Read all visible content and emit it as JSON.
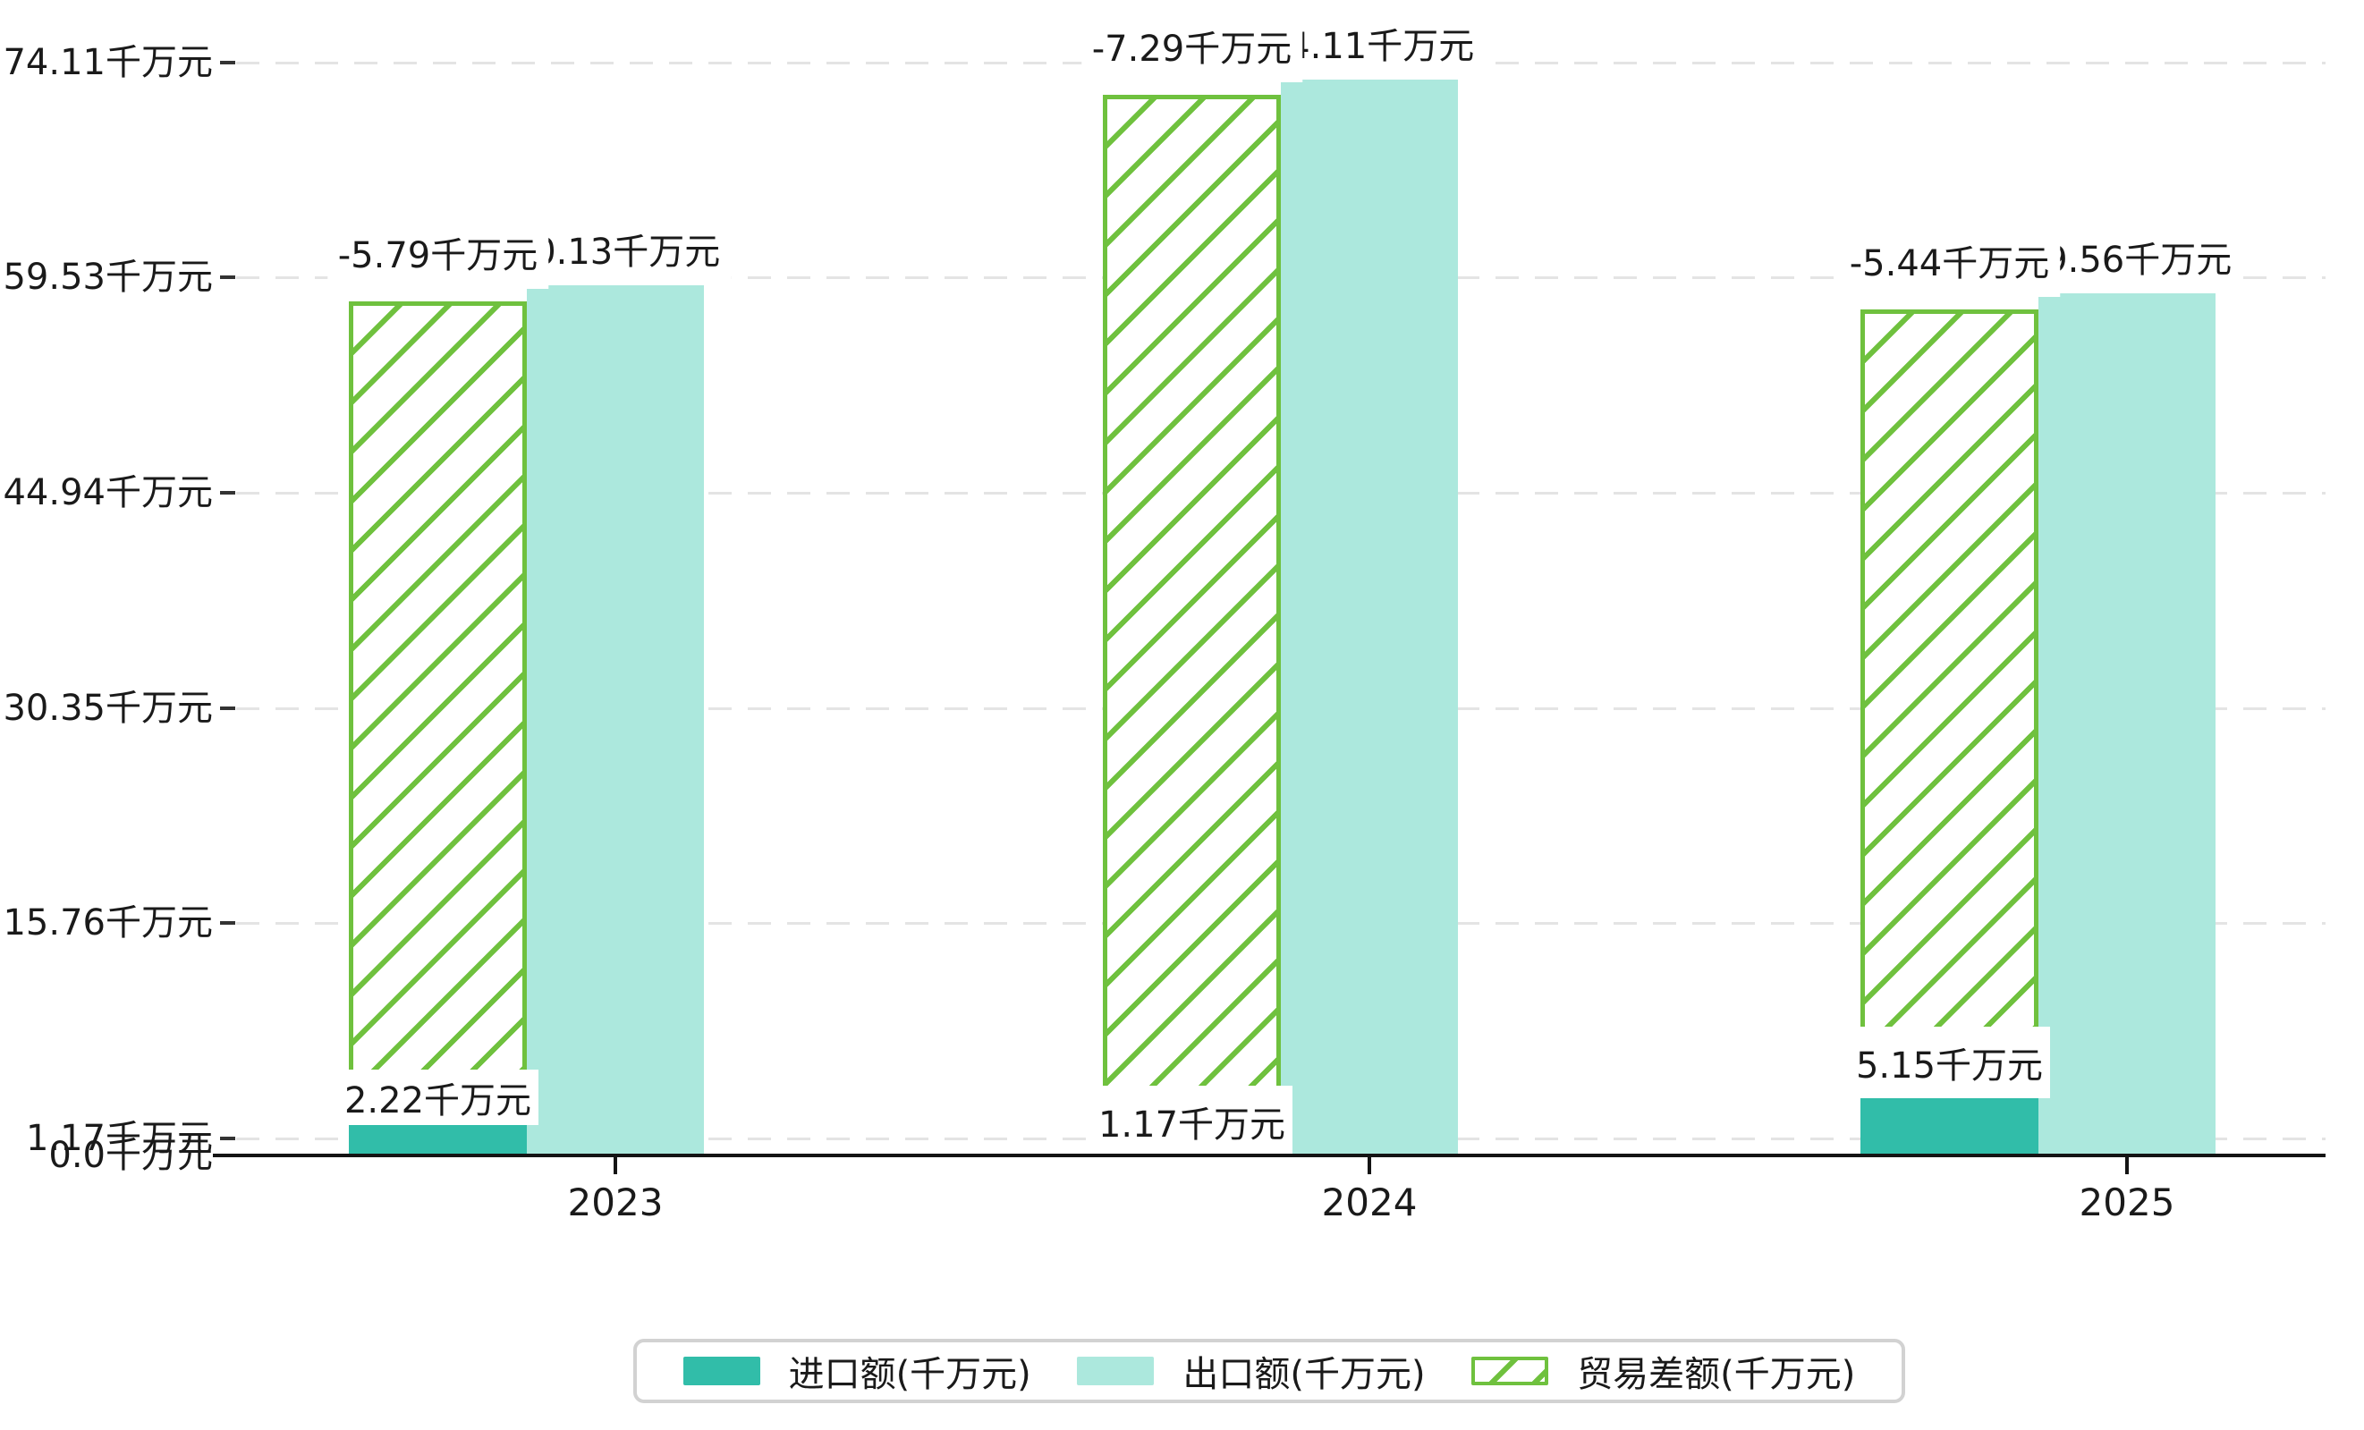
{
  "chart_data": {
    "type": "bar",
    "title": "",
    "xlabel": "",
    "ylabel": "",
    "categories": [
      "2023",
      "2024",
      "2025"
    ],
    "series": [
      {
        "name": "进口额(千万元)",
        "values": [
          2.22,
          1.17,
          5.15
        ],
        "labels": [
          "2.22千万元",
          "1.17千万元",
          "5.15千万元"
        ],
        "color": "#31bda9",
        "style": "solid"
      },
      {
        "name": "出口额(千万元)",
        "values": [
          60.13,
          74.11,
          59.56
        ],
        "drawn_values": [
          59.1,
          73.1,
          58.56
        ],
        "labels": [
          "60.13千万元",
          "74.11千万元",
          "59.56千万元"
        ],
        "color": "#ace8dd",
        "style": "solid"
      },
      {
        "name": "贸易差额(千万元)",
        "values": [
          -5.79,
          -7.29,
          -5.44
        ],
        "drawn_values": [
          57.9,
          71.9,
          57.35
        ],
        "labels": [
          "-5.79千万元",
          "-7.29千万元",
          "-5.44千万元"
        ],
        "color": "#6fc13e",
        "style": "hatched"
      }
    ],
    "y_ticks": [
      {
        "value": 74.11,
        "label": "74.11千万元"
      },
      {
        "value": 59.53,
        "label": "59.53千万元"
      },
      {
        "value": 44.94,
        "label": "44.94千万元"
      },
      {
        "value": 30.35,
        "label": "30.35千万元"
      },
      {
        "value": 15.76,
        "label": "15.76千万元"
      },
      {
        "value": 1.17,
        "label": "1.17千万元"
      },
      {
        "value": 0.0,
        "label": "0.0千万元"
      }
    ],
    "ylim": [
      0,
      75.7
    ],
    "grid": "horizontal-dashed",
    "legend_position": "bottom",
    "unit": "千万元"
  },
  "colors": {
    "import": "#31bda9",
    "export": "#ace8dd",
    "balance_green": "#6fc13e",
    "gridline": "#e4e4e4",
    "axis": "#141414",
    "legend_border": "#d2d2d2"
  }
}
